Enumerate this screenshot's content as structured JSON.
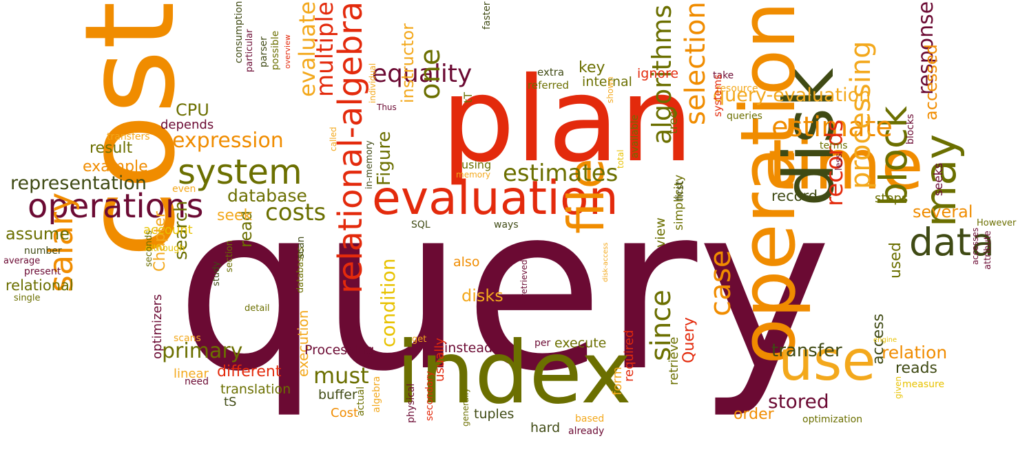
{
  "palette": {
    "maroon": "#6b0a33",
    "red": "#e32a0c",
    "orange": "#f08c00",
    "amber": "#f3a81c",
    "gold": "#e8c200",
    "olive": "#6b6f00",
    "darkolive": "#3f4a14",
    "tan": "#b58a20",
    "rust": "#c0561a",
    "purple": "#5a1340"
  },
  "words": [
    {
      "t": "query",
      "c": "maroon"
    },
    {
      "t": "cost",
      "c": "orange"
    },
    {
      "t": "plan",
      "c": "red"
    },
    {
      "t": "index",
      "c": "olive"
    },
    {
      "t": "evaluation",
      "c": "red"
    },
    {
      "t": "time",
      "c": "orange"
    },
    {
      "t": "operation",
      "c": "orange"
    },
    {
      "t": "disk",
      "c": "darkolive"
    },
    {
      "t": "system",
      "c": "olive"
    },
    {
      "t": "operations",
      "c": "maroon"
    },
    {
      "t": "relational-algebra",
      "c": "red"
    },
    {
      "t": "use",
      "c": "amber"
    },
    {
      "t": "file",
      "c": "orange"
    },
    {
      "t": "may",
      "c": "olive"
    },
    {
      "t": "block",
      "c": "olive"
    },
    {
      "t": "data",
      "c": "darkolive"
    },
    {
      "t": "estimate",
      "c": "orange"
    },
    {
      "t": "processing",
      "c": "amber"
    },
    {
      "t": "selection",
      "c": "orange"
    },
    {
      "t": "algorithms",
      "c": "olive"
    },
    {
      "t": "salary",
      "c": "orange"
    },
    {
      "t": "equality",
      "c": "maroon"
    },
    {
      "t": "estimates",
      "c": "olive"
    },
    {
      "t": "expression",
      "c": "orange"
    },
    {
      "t": "multiple",
      "c": "red"
    },
    {
      "t": "evaluate",
      "c": "amber"
    },
    {
      "t": "costs",
      "c": "olive"
    },
    {
      "t": "representation",
      "c": "darkolive"
    },
    {
      "t": "records",
      "c": "red"
    },
    {
      "t": "response",
      "c": "maroon"
    },
    {
      "t": "query-evaluation",
      "c": "amber"
    },
    {
      "t": "since",
      "c": "olive"
    },
    {
      "t": "case",
      "c": "orange"
    },
    {
      "t": "one",
      "c": "olive"
    },
    {
      "t": "Figure",
      "c": "olive"
    },
    {
      "t": "must",
      "c": "olive"
    },
    {
      "t": "primary",
      "c": "olive"
    },
    {
      "t": "database",
      "c": "olive"
    },
    {
      "t": "instructor",
      "c": "amber"
    },
    {
      "t": "search",
      "c": "olive"
    },
    {
      "t": "relation",
      "c": "orange"
    },
    {
      "t": "transfer",
      "c": "darkolive"
    },
    {
      "t": "stored",
      "c": "maroon"
    },
    {
      "t": "condition",
      "c": "gold"
    },
    {
      "t": "several",
      "c": "orange"
    },
    {
      "t": "accessed",
      "c": "orange"
    },
    {
      "t": "disks",
      "c": "amber"
    },
    {
      "t": "access",
      "c": "darkolive"
    },
    {
      "t": "used",
      "c": "olive"
    },
    {
      "t": "result",
      "c": "olive"
    },
    {
      "t": "example",
      "c": "orange"
    },
    {
      "t": "depends",
      "c": "maroon"
    },
    {
      "t": "CPU",
      "c": "olive"
    },
    {
      "t": "assume",
      "c": "olive"
    },
    {
      "t": "relational",
      "c": "olive"
    },
    {
      "t": "record",
      "c": "darkolive"
    },
    {
      "t": "read",
      "c": "olive"
    },
    {
      "t": "seek",
      "c": "amber"
    },
    {
      "t": "different",
      "c": "red"
    },
    {
      "t": "execution",
      "c": "amber"
    },
    {
      "t": "Query",
      "c": "red"
    },
    {
      "t": "order",
      "c": "orange"
    },
    {
      "t": "instead",
      "c": "maroon"
    },
    {
      "t": "execute",
      "c": "olive"
    },
    {
      "t": "key",
      "c": "olive"
    },
    {
      "t": "internal",
      "c": "olive"
    },
    {
      "t": "ignore",
      "c": "red"
    },
    {
      "t": "reads",
      "c": "darkolive"
    },
    {
      "t": "buffer",
      "c": "darkolive"
    },
    {
      "t": "Chapter",
      "c": "amber"
    },
    {
      "t": "view",
      "c": "olive"
    },
    {
      "t": "also",
      "c": "orange"
    },
    {
      "t": "translation",
      "c": "olive"
    },
    {
      "t": "tuples",
      "c": "darkolive"
    },
    {
      "t": "account",
      "c": "gold"
    },
    {
      "t": "steps",
      "c": "olive"
    },
    {
      "t": "Processing",
      "c": "maroon"
    },
    {
      "t": "Cost",
      "c": "orange"
    },
    {
      "t": "tS",
      "c": "darkolive"
    },
    {
      "t": "linear",
      "c": "amber"
    },
    {
      "t": "optimizers",
      "c": "maroon"
    },
    {
      "t": "retrieve",
      "c": "olive"
    },
    {
      "t": "form",
      "c": "amber"
    },
    {
      "t": "required",
      "c": "red"
    },
    {
      "t": "hard",
      "c": "darkolive"
    },
    {
      "t": "usually",
      "c": "red"
    },
    {
      "t": "tree",
      "c": "olive"
    },
    {
      "t": "using",
      "c": "olive"
    },
    {
      "t": "simplicity",
      "c": "olive"
    },
    {
      "t": "first",
      "c": "darkolive"
    },
    {
      "t": "seeks",
      "c": "maroon"
    },
    {
      "t": "blocks",
      "c": "maroon"
    },
    {
      "t": "tT",
      "c": "olive"
    },
    {
      "t": "extra",
      "c": "darkolive"
    },
    {
      "t": "referred",
      "c": "olive"
    },
    {
      "t": "faster",
      "c": "darkolive"
    },
    {
      "t": "take",
      "c": "maroon"
    },
    {
      "t": "resource",
      "c": "amber"
    },
    {
      "t": "queries",
      "c": "olive"
    },
    {
      "t": "terms",
      "c": "olive"
    },
    {
      "t": "However",
      "c": "olive"
    },
    {
      "t": "less",
      "c": "maroon"
    },
    {
      "t": "systems",
      "c": "red"
    },
    {
      "t": "available",
      "c": "olive"
    },
    {
      "t": "total",
      "c": "gold"
    },
    {
      "t": "shown",
      "c": "amber"
    },
    {
      "t": "ways",
      "c": "darkolive"
    },
    {
      "t": "SQL",
      "c": "darkolive"
    },
    {
      "t": "memory",
      "c": "amber"
    },
    {
      "t": "called",
      "c": "amber"
    },
    {
      "t": "individual",
      "c": "amber"
    },
    {
      "t": "Thus",
      "c": "maroon"
    },
    {
      "t": "possible",
      "c": "olive"
    },
    {
      "t": "overview",
      "c": "red"
    },
    {
      "t": "parser",
      "c": "darkolive"
    },
    {
      "t": "particular",
      "c": "maroon"
    },
    {
      "t": "consumption",
      "c": "darkolive"
    },
    {
      "t": "transfers",
      "c": "amber"
    },
    {
      "t": "even",
      "c": "amber"
    },
    {
      "t": "Although",
      "c": "gold"
    },
    {
      "t": "number",
      "c": "darkolive"
    },
    {
      "t": "average",
      "c": "maroon"
    },
    {
      "t": "present",
      "c": "maroon"
    },
    {
      "t": "single",
      "c": "olive"
    },
    {
      "t": "seconds",
      "c": "olive"
    },
    {
      "t": "study",
      "c": "darkolive"
    },
    {
      "t": "section",
      "c": "olive"
    },
    {
      "t": "detail",
      "c": "olive"
    },
    {
      "t": "scans",
      "c": "amber"
    },
    {
      "t": "need",
      "c": "maroon"
    },
    {
      "t": "databases",
      "c": "olive"
    },
    {
      "t": "scan",
      "c": "darkolive"
    },
    {
      "t": "in-memory",
      "c": "darkolive"
    },
    {
      "t": "get",
      "c": "amber"
    },
    {
      "t": "actual",
      "c": "olive"
    },
    {
      "t": "algebra",
      "c": "amber"
    },
    {
      "t": "physical",
      "c": "maroon"
    },
    {
      "t": "secondary",
      "c": "red"
    },
    {
      "t": "generally",
      "c": "olive"
    },
    {
      "t": "retrieved",
      "c": "maroon"
    },
    {
      "t": "per",
      "c": "maroon"
    },
    {
      "t": "based",
      "c": "amber"
    },
    {
      "t": "already",
      "c": "maroon"
    },
    {
      "t": "disk-access",
      "c": "amber"
    },
    {
      "t": "optimization",
      "c": "olive"
    },
    {
      "t": "measure",
      "c": "gold"
    },
    {
      "t": "given",
      "c": "gold"
    },
    {
      "t": "engine",
      "c": "gold"
    },
    {
      "t": "accesses",
      "c": "maroon"
    },
    {
      "t": "attribute",
      "c": "maroon"
    }
  ]
}
